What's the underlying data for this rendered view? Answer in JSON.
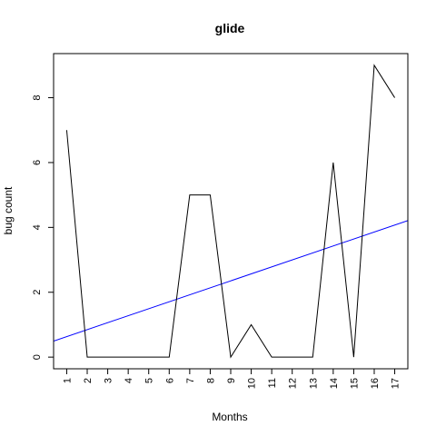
{
  "chart_data": {
    "type": "line",
    "title": "glide",
    "xlabel": "Months",
    "ylabel": "bug count",
    "x": [
      1,
      2,
      3,
      4,
      5,
      6,
      7,
      8,
      9,
      10,
      11,
      12,
      13,
      14,
      15,
      16,
      17
    ],
    "x_tick_labels": [
      "1",
      "2",
      "3",
      "4",
      "5",
      "6",
      "7",
      "8",
      "9",
      "10",
      "11",
      "12",
      "13",
      "14",
      "15",
      "16",
      "17"
    ],
    "y_ticks": [
      0,
      2,
      4,
      6,
      8
    ],
    "y_tick_labels": [
      "0",
      "2",
      "4",
      "6",
      "8"
    ],
    "xlim": [
      0.36,
      17.64
    ],
    "ylim": [
      -0.36,
      9.36
    ],
    "series": [
      {
        "values": [
          7,
          0,
          0,
          0,
          0,
          0,
          5,
          5,
          0,
          1,
          0,
          0,
          0,
          6,
          0,
          9,
          8
        ],
        "color": "#000000"
      }
    ],
    "trend_line": {
      "intercept": 0.417,
      "slope": 0.215,
      "color": "#0000ff"
    },
    "grid": false,
    "legend": "none"
  }
}
